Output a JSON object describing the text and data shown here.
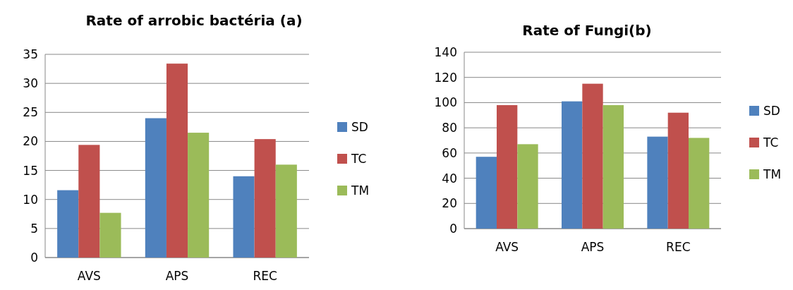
{
  "chart_data": [
    {
      "type": "bar",
      "title": "Rate of arrobic bactéria (a)",
      "categories": [
        "AVS",
        "APS",
        "REC"
      ],
      "series": [
        {
          "name": "SD",
          "color": "#4f81bd",
          "values": [
            11.6,
            24,
            14
          ]
        },
        {
          "name": "TC",
          "color": "#c0504d",
          "values": [
            19.4,
            33.4,
            20.4
          ]
        },
        {
          "name": "TM",
          "color": "#9bbb59",
          "values": [
            7.7,
            21.5,
            16
          ]
        }
      ],
      "ylim": [
        0,
        35
      ],
      "yticks": [
        0,
        5,
        10,
        15,
        20,
        25,
        30,
        35
      ],
      "grid": "y",
      "legend": "right"
    },
    {
      "type": "bar",
      "title": "Rate of Fungi(b)",
      "categories": [
        "AVS",
        "APS",
        "REC"
      ],
      "series": [
        {
          "name": "SD",
          "color": "#4f81bd",
          "values": [
            57,
            101,
            73
          ]
        },
        {
          "name": "TC",
          "color": "#c0504d",
          "values": [
            98,
            115,
            92
          ]
        },
        {
          "name": "TM",
          "color": "#9bbb59",
          "values": [
            67,
            98,
            72
          ]
        }
      ],
      "ylim": [
        0,
        140
      ],
      "yticks": [
        0,
        20,
        40,
        60,
        80,
        100,
        120,
        140
      ],
      "grid": "y",
      "legend": "right"
    }
  ]
}
